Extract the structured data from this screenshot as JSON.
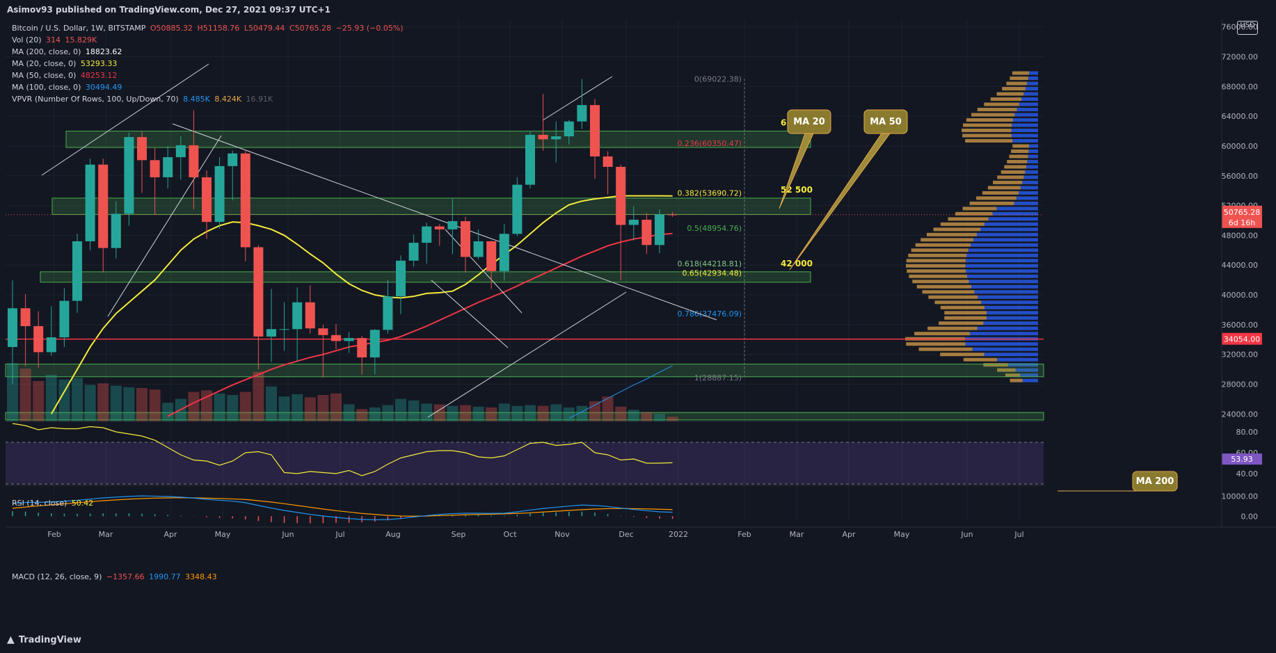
{
  "header": {
    "published": "Asimov93 published on TradingView.com, Dec 27, 2021 09:37 UTC+1"
  },
  "footer": {
    "brand": "TradingView"
  },
  "price_scale_unit": "USD",
  "legend": {
    "symbol": "Bitcoin / U.S. Dollar, 1W, BITSTAMP",
    "ohlc": {
      "o": "O50885.32",
      "h": "H51158.76",
      "l": "L50479.44",
      "c": "C50765.28",
      "chg": "−25.93 (−0.05%)"
    },
    "vol": {
      "label": "Vol (20)",
      "v1": "314",
      "v2": "15.829K"
    },
    "ma200": {
      "label": "MA (200, close, 0)",
      "value": "18823.62"
    },
    "ma20": {
      "label": "MA (20, close, 0)",
      "value": "53293.33"
    },
    "ma50": {
      "label": "MA (50, close, 0)",
      "value": "48253.12"
    },
    "ma100": {
      "label": "MA (100, close, 0)",
      "value": "30494.49"
    },
    "vpvr": {
      "label": "VPVR (Number Of Rows, 100, Up/Down, 70)",
      "v1": "8.485K",
      "v2": "8.424K",
      "v3": "16.91K"
    },
    "rsi": {
      "label": "RSI (14, close)",
      "value": "50.42"
    },
    "macd": {
      "label": "MACD (12, 26, close, 9)",
      "v1": "−1357.66",
      "v2": "1990.77",
      "v3": "3348.43"
    }
  },
  "colors": {
    "bg": "#131722",
    "up": "#26a69a",
    "down": "#ef5350",
    "ma20": "#f5eb3b",
    "ma50": "#f23645",
    "ma100": "#2196f3",
    "ma200": "#ff9800",
    "zone": "#4caf50",
    "vp_up": "#2962ff",
    "vp_down": "#e5a84b"
  },
  "chart_data": {
    "type": "candlestick",
    "title": "Bitcoin / U.S. Dollar, 1W, BITSTAMP",
    "ylim": [
      23000,
      77000
    ],
    "x_labels": [
      "Feb",
      "Mar",
      "Apr",
      "May",
      "Jun",
      "Jul",
      "Aug",
      "Sep",
      "Oct",
      "Nov",
      "Dec",
      "2022",
      "Feb",
      "Mar",
      "Apr",
      "May",
      "Jun",
      "Jul"
    ],
    "y_ticks": [
      "76000.00",
      "72000.00",
      "68000.00",
      "64000.00",
      "60000.00",
      "56000.00",
      "52000.00",
      "48000.00",
      "44000.00",
      "40000.00",
      "36000.00",
      "32000.00",
      "28000.00",
      "24000.00"
    ],
    "last_price": {
      "label": "50765.28",
      "countdown": "6d 16h",
      "value": 50765.28
    },
    "level_line": {
      "label": "34054.00",
      "value": 34054
    },
    "weeks": [
      "2021-01-04",
      "2021-01-11",
      "2021-01-18",
      "2021-01-25",
      "2021-02-01",
      "2021-02-08",
      "2021-02-15",
      "2021-02-22",
      "2021-03-01",
      "2021-03-08",
      "2021-03-15",
      "2021-03-22",
      "2021-03-29",
      "2021-04-05",
      "2021-04-12",
      "2021-04-19",
      "2021-04-26",
      "2021-05-03",
      "2021-05-10",
      "2021-05-17",
      "2021-05-24",
      "2021-05-31",
      "2021-06-07",
      "2021-06-14",
      "2021-06-21",
      "2021-06-28",
      "2021-07-05",
      "2021-07-12",
      "2021-07-19",
      "2021-07-26",
      "2021-08-02",
      "2021-08-09",
      "2021-08-16",
      "2021-08-23",
      "2021-08-30",
      "2021-09-06",
      "2021-09-13",
      "2021-09-20",
      "2021-09-27",
      "2021-10-04",
      "2021-10-11",
      "2021-10-18",
      "2021-10-25",
      "2021-11-01",
      "2021-11-08",
      "2021-11-15",
      "2021-11-22",
      "2021-11-29",
      "2021-12-06",
      "2021-12-13",
      "2021-12-20",
      "2021-12-27"
    ],
    "candles": [
      [
        33000,
        41950,
        28000,
        38200
      ],
      [
        38200,
        40100,
        30400,
        35800
      ],
      [
        35800,
        37800,
        30200,
        32300
      ],
      [
        32300,
        38500,
        31800,
        34300
      ],
      [
        34300,
        40900,
        33000,
        39200
      ],
      [
        39200,
        48200,
        37600,
        47200
      ],
      [
        47200,
        58300,
        46000,
        57500
      ],
      [
        57500,
        58300,
        43000,
        46300
      ],
      [
        46300,
        52600,
        44900,
        50900
      ],
      [
        50900,
        61800,
        49300,
        61200
      ],
      [
        61200,
        61900,
        53700,
        58100
      ],
      [
        58100,
        59700,
        50800,
        55800
      ],
      [
        55800,
        60000,
        54300,
        58500
      ],
      [
        58500,
        61300,
        55500,
        60100
      ],
      [
        60100,
        64800,
        51500,
        55800
      ],
      [
        55800,
        56700,
        47500,
        49800
      ],
      [
        49800,
        58500,
        48900,
        57300
      ],
      [
        57300,
        59400,
        52700,
        59000
      ],
      [
        59000,
        59500,
        44500,
        46400
      ],
      [
        46400,
        46700,
        30000,
        34400
      ],
      [
        34400,
        40800,
        31000,
        35400
      ],
      [
        35400,
        39000,
        32500,
        35400
      ],
      [
        35400,
        41000,
        31000,
        39000
      ],
      [
        39000,
        41300,
        34800,
        35500
      ],
      [
        35500,
        36000,
        28900,
        34600
      ],
      [
        34600,
        36100,
        32700,
        33800
      ],
      [
        33800,
        35000,
        32200,
        34200
      ],
      [
        34200,
        34500,
        29300,
        31600
      ],
      [
        31600,
        35400,
        29300,
        35300
      ],
      [
        35300,
        42000,
        34800,
        39800
      ],
      [
        39800,
        45300,
        37400,
        44600
      ],
      [
        44600,
        48100,
        43800,
        47000
      ],
      [
        47000,
        49700,
        44200,
        49200
      ],
      [
        49200,
        49500,
        46600,
        48800
      ],
      [
        48800,
        52900,
        45500,
        49900
      ],
      [
        49900,
        50500,
        43000,
        45100
      ],
      [
        45100,
        48800,
        44800,
        47200
      ],
      [
        47200,
        47300,
        40800,
        43200
      ],
      [
        43200,
        49500,
        41900,
        48200
      ],
      [
        48200,
        55800,
        47900,
        54800
      ],
      [
        54800,
        62000,
        54300,
        61500
      ],
      [
        61500,
        67000,
        59400,
        60900
      ],
      [
        60900,
        63300,
        57800,
        61300
      ],
      [
        61300,
        63500,
        60200,
        63300
      ],
      [
        63300,
        69000,
        62300,
        65500
      ],
      [
        65500,
        66300,
        55600,
        58600
      ],
      [
        58600,
        59300,
        53500,
        57200
      ],
      [
        57200,
        57500,
        42000,
        49400
      ],
      [
        49400,
        51900,
        47300,
        50100
      ],
      [
        50100,
        51000,
        45500,
        46700
      ],
      [
        46700,
        51500,
        45600,
        50800
      ],
      [
        50800,
        51160,
        50480,
        50765
      ]
    ],
    "zones": [
      {
        "label": "61 000",
        "low": 59800,
        "high": 62000
      },
      {
        "label": "52 500",
        "low": 50800,
        "high": 53000
      },
      {
        "label": "42 000",
        "low": 41700,
        "high": 43100
      },
      {
        "label": "",
        "low": 29000,
        "high": 30700
      },
      {
        "label": "",
        "low": 23200,
        "high": 24200
      }
    ],
    "fib_levels": [
      {
        "label": "0(69022.38)",
        "value": 69022.38,
        "color": "#787b86"
      },
      {
        "label": "0.236(60350.47)",
        "value": 60350.47,
        "color": "#f23645"
      },
      {
        "label": "0.382(53690.72)",
        "value": 53690.72,
        "color": "#f5eb3b"
      },
      {
        "label": "0.5(48954.76)",
        "value": 48954.76,
        "color": "#4caf50"
      },
      {
        "label": "0.618(44218.81)",
        "value": 44218.81,
        "color": "#81c784"
      },
      {
        "label": "0.65(42934.48)",
        "value": 42934.48,
        "color": "#f5eb3b"
      },
      {
        "label": "0.786(37476.09)",
        "value": 37476.09,
        "color": "#2196f3"
      },
      {
        "label": "1(28887.15)",
        "value": 28887.15,
        "color": "#787b86"
      }
    ],
    "annotations": [
      "MA 20",
      "MA 50",
      "MA 200"
    ],
    "ma20": [
      17000,
      19000,
      21500,
      24000,
      27000,
      30000,
      33000,
      35500,
      37500,
      39000,
      40500,
      42000,
      44000,
      46000,
      47500,
      48500,
      49300,
      49800,
      49700,
      49300,
      48800,
      48000,
      46800,
      45500,
      44300,
      42800,
      41500,
      40600,
      40000,
      39700,
      39600,
      39800,
      40200,
      40300,
      40500,
      41400,
      42700,
      44100,
      45400,
      46700,
      48200,
      49700,
      51000,
      52100,
      52600,
      52900,
      53100,
      53300,
      53300,
      53300,
      53300,
      53293
    ],
    "ma50": [
      null,
      null,
      null,
      null,
      null,
      null,
      null,
      null,
      null,
      null,
      null,
      22800,
      23700,
      24600,
      25500,
      26300,
      27100,
      27900,
      28600,
      29300,
      30000,
      30600,
      31100,
      31600,
      32000,
      32500,
      33000,
      33300,
      33600,
      33900,
      34400,
      35100,
      35800,
      36600,
      37400,
      38200,
      39000,
      39700,
      40400,
      41200,
      42000,
      42800,
      43600,
      44400,
      45200,
      45900,
      46600,
      47100,
      47500,
      47800,
      48100,
      48253
    ],
    "ma100": [
      null,
      null,
      null,
      null,
      null,
      null,
      null,
      null,
      null,
      null,
      null,
      null,
      null,
      null,
      null,
      null,
      null,
      null,
      null,
      null,
      null,
      null,
      null,
      null,
      null,
      null,
      null,
      null,
      null,
      null,
      null,
      null,
      null,
      null,
      null,
      null,
      18900,
      19400,
      19900,
      20500,
      21100,
      21800,
      22600,
      23400,
      24300,
      25200,
      26100,
      27000,
      27900,
      28700,
      29600,
      30494
    ],
    "volume": [
      7.5,
      6.8,
      5.2,
      6.0,
      5.4,
      5.6,
      4.7,
      4.9,
      4.6,
      4.4,
      4.3,
      4.1,
      2.4,
      2.9,
      3.8,
      4.0,
      3.6,
      3.4,
      3.8,
      6.4,
      4.5,
      3.2,
      3.5,
      3.1,
      3.4,
      3.6,
      2.2,
      1.6,
      1.8,
      2.1,
      2.9,
      2.7,
      2.3,
      2.2,
      2.0,
      2.1,
      1.9,
      1.8,
      2.3,
      2.0,
      2.1,
      2.0,
      2.2,
      1.8,
      2.0,
      2.6,
      3.2,
      1.9,
      1.5,
      1.2,
      1.0,
      0.6
    ],
    "rsi": [
      88,
      86,
      82,
      84,
      83,
      83,
      85,
      84,
      80,
      78,
      76,
      72,
      65,
      58,
      53,
      52,
      48,
      52,
      60,
      61,
      58,
      41,
      40,
      42,
      41,
      40,
      43,
      38,
      42,
      49,
      55,
      58,
      61,
      62,
      62,
      60,
      56,
      55,
      57,
      63,
      69,
      70,
      67,
      68,
      70,
      60,
      58,
      53,
      54,
      50,
      50,
      50.42
    ],
    "macd_line": [
      6500,
      6900,
      7000,
      7200,
      7500,
      8000,
      8600,
      9200,
      9600,
      10000,
      10200,
      10100,
      9900,
      9600,
      9100,
      8500,
      8000,
      7600,
      6800,
      5400,
      4100,
      2900,
      1900,
      900,
      100,
      -600,
      -1200,
      -1600,
      -1800,
      -1700,
      -1200,
      -400,
      300,
      900,
      1300,
      1500,
      1500,
      1400,
      1500,
      2200,
      3100,
      3900,
      4500,
      5100,
      5600,
      5400,
      4900,
      4100,
      3400,
      2800,
      2200,
      1990
    ],
    "macd_signal": [
      4000,
      4600,
      5200,
      5700,
      6200,
      6800,
      7300,
      7800,
      8200,
      8600,
      8900,
      9100,
      9200,
      9300,
      9200,
      9100,
      8900,
      8700,
      8400,
      7800,
      7100,
      6300,
      5400,
      4500,
      3600,
      2800,
      2100,
      1400,
      900,
      400,
      100,
      0,
      100,
      300,
      500,
      700,
      900,
      1000,
      1200,
      1400,
      1700,
      2100,
      2500,
      2900,
      3300,
      3600,
      3800,
      3900,
      3800,
      3700,
      3500,
      3348
    ]
  }
}
